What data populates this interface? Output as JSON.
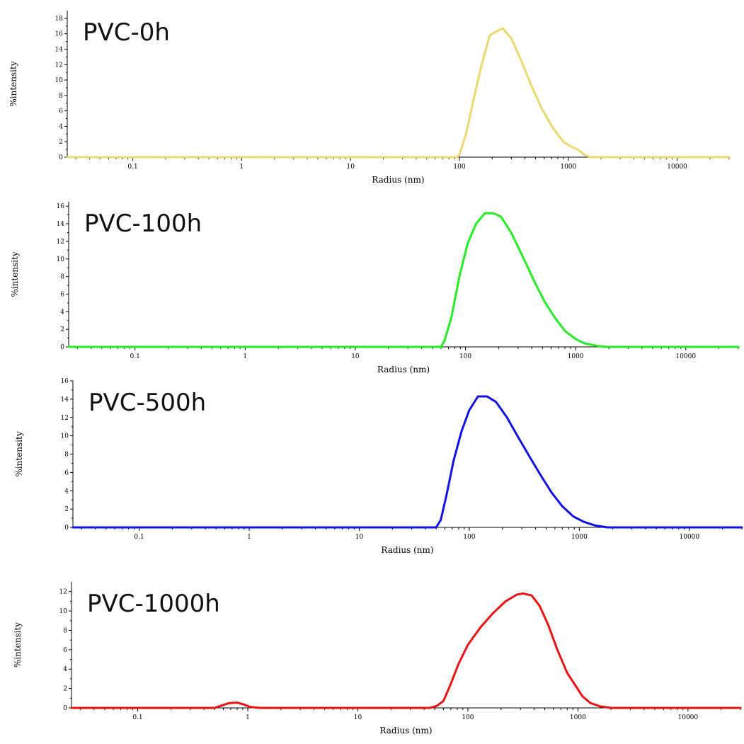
{
  "chart_data": [
    {
      "type": "line",
      "panel_label": "PVC-0h",
      "xlabel": "Radius (nm)",
      "ylabel": "%intensity",
      "xscale": "log",
      "xlim": [
        0.025,
        30000
      ],
      "ylim": [
        0,
        19
      ],
      "yticks": [
        "0",
        "2",
        "4",
        "6",
        "8",
        "10",
        "12",
        "14",
        "16",
        "18"
      ],
      "xticks": [
        "0.1",
        "1",
        "10",
        "100",
        "1000",
        "10000"
      ],
      "series": [
        {
          "color": "#ebd86e",
          "points": [
            [
              0.025,
              0
            ],
            [
              95,
              0
            ],
            [
              100,
              0.3
            ],
            [
              115,
              3
            ],
            [
              135,
              7.5
            ],
            [
              160,
              12
            ],
            [
              190,
              15.8
            ],
            [
              225,
              16.4
            ],
            [
              250,
              16.7
            ],
            [
              300,
              15.4
            ],
            [
              370,
              12.5
            ],
            [
              450,
              9.5
            ],
            [
              570,
              6.3
            ],
            [
              720,
              3.8
            ],
            [
              900,
              2.0
            ],
            [
              1050,
              1.4
            ],
            [
              1250,
              0.9
            ],
            [
              1400,
              0.3
            ],
            [
              1600,
              0
            ],
            [
              30000,
              0
            ]
          ]
        }
      ]
    },
    {
      "type": "line",
      "panel_label": "PVC-100h",
      "xlabel": "Radius (nm)",
      "ylabel": "%intensity",
      "xscale": "log",
      "xlim": [
        0.025,
        30000
      ],
      "ylim": [
        0,
        16.5
      ],
      "yticks": [
        "0",
        "2",
        "4",
        "6",
        "8",
        "10",
        "12",
        "14",
        "16"
      ],
      "xticks": [
        "0.1",
        "1",
        "10",
        "100",
        "1000",
        "10000"
      ],
      "series": [
        {
          "color": "#22ee22",
          "points": [
            [
              0.025,
              0
            ],
            [
              60,
              0
            ],
            [
              65,
              0.8
            ],
            [
              75,
              3.5
            ],
            [
              88,
              8
            ],
            [
              105,
              11.8
            ],
            [
              125,
              14
            ],
            [
              150,
              15.2
            ],
            [
              180,
              15.2
            ],
            [
              210,
              14.8
            ],
            [
              260,
              13
            ],
            [
              330,
              10.3
            ],
            [
              420,
              7.5
            ],
            [
              520,
              5.2
            ],
            [
              650,
              3.3
            ],
            [
              800,
              1.8
            ],
            [
              1000,
              0.9
            ],
            [
              1200,
              0.4
            ],
            [
              1600,
              0.1
            ],
            [
              1900,
              0
            ],
            [
              30000,
              0
            ]
          ]
        }
      ]
    },
    {
      "type": "line",
      "panel_label": "PVC-500h",
      "xlabel": "Radius (nm)",
      "ylabel": "%intensity",
      "xscale": "log",
      "xlim": [
        0.025,
        30000
      ],
      "ylim": [
        0,
        16
      ],
      "yticks": [
        "0",
        "2",
        "4",
        "6",
        "8",
        "10",
        "12",
        "14",
        "16"
      ],
      "xticks": [
        "0.1",
        "1",
        "10",
        "100",
        "1000",
        "10000"
      ],
      "series": [
        {
          "color": "#1010e8",
          "points": [
            [
              0.025,
              0
            ],
            [
              50,
              0
            ],
            [
              55,
              0.8
            ],
            [
              62,
              3.5
            ],
            [
              72,
              7.3
            ],
            [
              85,
              10.5
            ],
            [
              100,
              12.8
            ],
            [
              120,
              14.3
            ],
            [
              145,
              14.3
            ],
            [
              175,
              13.7
            ],
            [
              220,
              12
            ],
            [
              280,
              9.8
            ],
            [
              350,
              7.8
            ],
            [
              450,
              5.6
            ],
            [
              560,
              3.8
            ],
            [
              700,
              2.3
            ],
            [
              880,
              1.2
            ],
            [
              1100,
              0.6
            ],
            [
              1400,
              0.2
            ],
            [
              1800,
              0
            ],
            [
              30000,
              0
            ]
          ]
        }
      ]
    },
    {
      "type": "line",
      "panel_label": "PVC-1000h",
      "xlabel": "Radius (nm)",
      "ylabel": "%intensity",
      "xscale": "log",
      "xlim": [
        0.025,
        30000
      ],
      "ylim": [
        0,
        13
      ],
      "yticks": [
        "0",
        "2",
        "4",
        "6",
        "8",
        "10",
        "12"
      ],
      "xticks": [
        "0.1",
        "1",
        "10",
        "100",
        "1000",
        "10000"
      ],
      "series": [
        {
          "color": "#ee1111",
          "points": [
            [
              0.025,
              0
            ],
            [
              0.5,
              0
            ],
            [
              0.58,
              0.25
            ],
            [
              0.68,
              0.5
            ],
            [
              0.8,
              0.55
            ],
            [
              0.92,
              0.35
            ],
            [
              1.05,
              0.1
            ],
            [
              1.3,
              0
            ],
            [
              45,
              0
            ],
            [
              52,
              0.2
            ],
            [
              60,
              0.7
            ],
            [
              70,
              2.5
            ],
            [
              82,
              4.5
            ],
            [
              100,
              6.5
            ],
            [
              130,
              8.3
            ],
            [
              170,
              9.8
            ],
            [
              220,
              11.0
            ],
            [
              280,
              11.7
            ],
            [
              320,
              11.8
            ],
            [
              380,
              11.6
            ],
            [
              450,
              10.5
            ],
            [
              540,
              8.5
            ],
            [
              650,
              6.0
            ],
            [
              800,
              3.6
            ],
            [
              950,
              2.3
            ],
            [
              1100,
              1.2
            ],
            [
              1300,
              0.5
            ],
            [
              1600,
              0.15
            ],
            [
              2000,
              0
            ],
            [
              30000,
              0
            ]
          ]
        }
      ]
    }
  ]
}
